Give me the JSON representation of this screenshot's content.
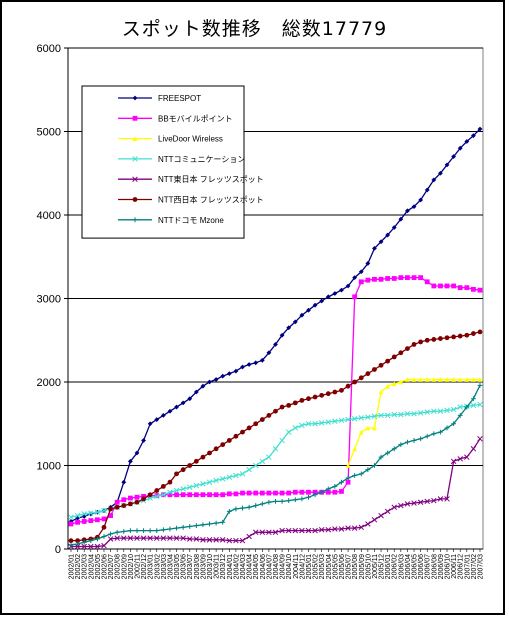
{
  "chart_data": {
    "type": "line",
    "title": "スポット数推移　総数17779",
    "ylim": [
      0,
      6000
    ],
    "yticks": [
      0,
      1000,
      2000,
      3000,
      4000,
      5000,
      6000
    ],
    "grid": "horizontal",
    "legend_position": "top-left",
    "categories": [
      "2002/01",
      "2002/02",
      "2002/03",
      "2002/04",
      "2002/05",
      "2002/06",
      "2002/07",
      "2002/08",
      "2002/09",
      "2002/10",
      "2002/11",
      "2002/12",
      "2003/01",
      "2003/02",
      "2003/03",
      "2003/04",
      "2003/05",
      "2003/06",
      "2003/07",
      "2003/08",
      "2003/09",
      "2003/10",
      "2003/11",
      "2003/12",
      "2004/01",
      "2004/02",
      "2004/03",
      "2004/04",
      "2004/05",
      "2004/06",
      "2004/07",
      "2004/08",
      "2004/09",
      "2004/10",
      "2004/11",
      "2004/12",
      "2005/01",
      "2005/02",
      "2005/03",
      "2005/04",
      "2005/05",
      "2005/06",
      "2005/07",
      "2005/08",
      "2005/09",
      "2005/10",
      "2005/11",
      "2005/12",
      "2006/01",
      "2006/02",
      "2006/03",
      "2006/04",
      "2006/05",
      "2006/06",
      "2006/07",
      "2006/08",
      "2006/09",
      "2006/10",
      "2006/11",
      "2006/12",
      "2007/01",
      "2007/02",
      "2007/03"
    ],
    "series": [
      {
        "name": "FREESPOT",
        "color": "#000080",
        "marker": "diamond",
        "values": [
          330,
          370,
          390,
          420,
          440,
          460,
          500,
          560,
          800,
          1050,
          1150,
          1300,
          1500,
          1550,
          1600,
          1650,
          1700,
          1750,
          1800,
          1880,
          1950,
          2000,
          2030,
          2070,
          2100,
          2130,
          2180,
          2210,
          2230,
          2260,
          2350,
          2450,
          2560,
          2650,
          2720,
          2800,
          2860,
          2920,
          2970,
          3020,
          3060,
          3100,
          3150,
          3250,
          3320,
          3420,
          3600,
          3680,
          3760,
          3850,
          3950,
          4050,
          4100,
          4180,
          4300,
          4420,
          4500,
          4600,
          4700,
          4800,
          4880,
          4950,
          5030
        ]
      },
      {
        "name": "BBモバイルポイント",
        "color": "#ff00ff",
        "marker": "square",
        "values": [
          300,
          320,
          330,
          340,
          350,
          360,
          400,
          560,
          590,
          610,
          620,
          630,
          640,
          640,
          650,
          650,
          650,
          650,
          650,
          650,
          650,
          650,
          650,
          650,
          660,
          660,
          670,
          670,
          670,
          670,
          670,
          670,
          670,
          670,
          680,
          680,
          680,
          680,
          680,
          680,
          680,
          690,
          800,
          3020,
          3200,
          3220,
          3230,
          3230,
          3240,
          3240,
          3250,
          3250,
          3250,
          3250,
          3200,
          3150,
          3150,
          3150,
          3150,
          3130,
          3130,
          3110,
          3100
        ]
      },
      {
        "name": "LiveDoor Wireless",
        "color": "#ffff00",
        "marker": "triangle",
        "values": [
          null,
          null,
          null,
          null,
          null,
          null,
          null,
          null,
          null,
          null,
          null,
          null,
          null,
          null,
          null,
          null,
          null,
          null,
          null,
          null,
          null,
          null,
          null,
          null,
          null,
          null,
          null,
          null,
          null,
          null,
          null,
          null,
          null,
          null,
          null,
          null,
          null,
          null,
          null,
          null,
          null,
          null,
          1000,
          1200,
          1400,
          1450,
          1450,
          1880,
          1950,
          1980,
          2000,
          2030,
          2030,
          2030,
          2030,
          2030,
          2030,
          2030,
          2030,
          2030,
          2030,
          2030,
          2030
        ]
      },
      {
        "name": "NTTコミュニケーション",
        "color": "#40e0d0",
        "marker": "x",
        "values": [
          380,
          400,
          420,
          430,
          440,
          460,
          480,
          500,
          520,
          540,
          560,
          580,
          610,
          630,
          650,
          680,
          700,
          720,
          740,
          760,
          780,
          800,
          820,
          840,
          860,
          880,
          900,
          950,
          1000,
          1050,
          1100,
          1200,
          1300,
          1400,
          1450,
          1480,
          1500,
          1500,
          1510,
          1520,
          1530,
          1540,
          1550,
          1560,
          1570,
          1580,
          1590,
          1600,
          1600,
          1610,
          1610,
          1620,
          1620,
          1630,
          1640,
          1650,
          1650,
          1660,
          1670,
          1700,
          1710,
          1720,
          1730
        ]
      },
      {
        "name": "NTT東日本 フレッツスポット",
        "color": "#800080",
        "marker": "x",
        "values": [
          30,
          30,
          30,
          30,
          30,
          40,
          120,
          130,
          130,
          130,
          130,
          130,
          130,
          130,
          130,
          130,
          130,
          130,
          120,
          120,
          110,
          110,
          110,
          110,
          100,
          100,
          100,
          150,
          200,
          200,
          200,
          200,
          220,
          220,
          220,
          220,
          220,
          220,
          230,
          230,
          240,
          240,
          250,
          250,
          260,
          300,
          350,
          400,
          450,
          500,
          520,
          540,
          550,
          560,
          570,
          580,
          600,
          600,
          1050,
          1080,
          1100,
          1200,
          1320
        ]
      },
      {
        "name": "NTT西日本 フレッツスポット",
        "color": "#800000",
        "marker": "circle",
        "values": [
          100,
          100,
          110,
          120,
          140,
          260,
          480,
          500,
          520,
          540,
          560,
          600,
          650,
          700,
          750,
          800,
          900,
          950,
          1000,
          1050,
          1100,
          1150,
          1200,
          1250,
          1300,
          1350,
          1400,
          1450,
          1500,
          1550,
          1600,
          1650,
          1700,
          1720,
          1750,
          1780,
          1800,
          1820,
          1840,
          1860,
          1880,
          1900,
          1950,
          2000,
          2050,
          2100,
          2150,
          2200,
          2250,
          2300,
          2350,
          2400,
          2450,
          2480,
          2500,
          2510,
          2520,
          2530,
          2540,
          2550,
          2560,
          2580,
          2600
        ]
      },
      {
        "name": "NTTドコモ Mzone",
        "color": "#008080",
        "marker": "plus",
        "values": [
          50,
          60,
          80,
          100,
          120,
          150,
          180,
          200,
          210,
          220,
          220,
          220,
          220,
          220,
          230,
          240,
          250,
          260,
          270,
          280,
          290,
          300,
          310,
          320,
          450,
          480,
          490,
          500,
          520,
          540,
          560,
          570,
          570,
          580,
          590,
          600,
          620,
          650,
          680,
          720,
          750,
          800,
          850,
          880,
          900,
          950,
          1000,
          1100,
          1150,
          1200,
          1250,
          1280,
          1300,
          1320,
          1350,
          1380,
          1400,
          1450,
          1500,
          1600,
          1700,
          1800,
          1960
        ]
      }
    ]
  }
}
